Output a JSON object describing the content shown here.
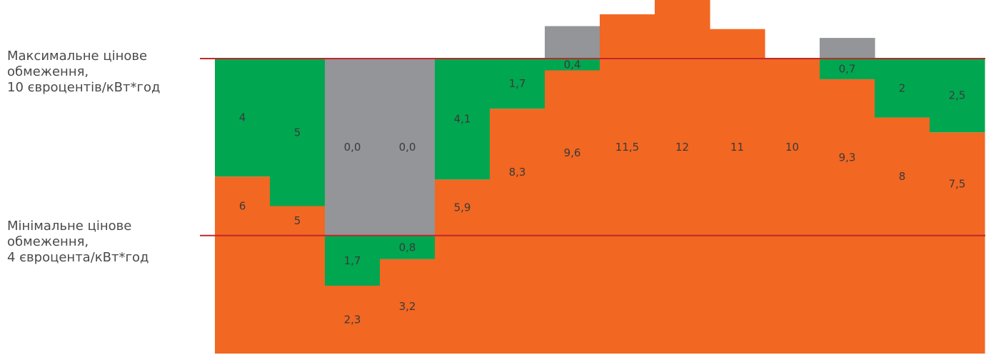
{
  "colors": {
    "orange": "#f26722",
    "green": "#00a650",
    "gray": "#939598",
    "limit_line": "#c1272d",
    "text": "#3a3a3a"
  },
  "labels": {
    "max": [
      "Максимальне цінове",
      "обмеження,",
      "10 євроцентів/кВт*год"
    ],
    "min": [
      "Мінімальне цінове",
      "обмеження,",
      "4 євроцента/кВт*год"
    ]
  },
  "chart_data": {
    "type": "bar",
    "max_cap": 10,
    "min_cap": 4,
    "columns": [
      {
        "price": 6,
        "segments": [
          {
            "color": "orange",
            "from": 0,
            "to": 6,
            "label": "6"
          },
          {
            "color": "green",
            "from": 6,
            "to": 10,
            "label": "4"
          }
        ]
      },
      {
        "price": 5,
        "segments": [
          {
            "color": "orange",
            "from": 0,
            "to": 5,
            "label": "5"
          },
          {
            "color": "green",
            "from": 5,
            "to": 10,
            "label": "5"
          }
        ]
      },
      {
        "price": 2.3,
        "segments": [
          {
            "color": "orange",
            "from": 0,
            "to": 2.3,
            "label": "2,3"
          },
          {
            "color": "green",
            "from": 2.3,
            "to": 4,
            "label": "1,7"
          },
          {
            "color": "gray",
            "from": 4,
            "to": 10,
            "label": "0,0"
          }
        ]
      },
      {
        "price": 3.2,
        "segments": [
          {
            "color": "orange",
            "from": 0,
            "to": 3.2,
            "label": "3,2"
          },
          {
            "color": "green",
            "from": 3.2,
            "to": 4,
            "label": "0,8"
          },
          {
            "color": "gray",
            "from": 4,
            "to": 10,
            "label": "0,0"
          }
        ]
      },
      {
        "price": 5.9,
        "segments": [
          {
            "color": "orange",
            "from": 0,
            "to": 5.9,
            "label": "5,9"
          },
          {
            "color": "green",
            "from": 5.9,
            "to": 10,
            "label": "4,1"
          }
        ]
      },
      {
        "price": 8.3,
        "segments": [
          {
            "color": "orange",
            "from": 0,
            "to": 8.3,
            "label": "8,3"
          },
          {
            "color": "green",
            "from": 8.3,
            "to": 10,
            "label": "1,7"
          }
        ]
      },
      {
        "price": 9.6,
        "segments": [
          {
            "color": "orange",
            "from": 0,
            "to": 9.6,
            "label": "9,6"
          },
          {
            "color": "green",
            "from": 9.6,
            "to": 10,
            "label": "0,4"
          },
          {
            "color": "gray",
            "from": 10,
            "to": 11.1,
            "label": ""
          }
        ]
      },
      {
        "price": 11.5,
        "segments": [
          {
            "color": "orange",
            "from": 0,
            "to": 11.5,
            "label": "11,5"
          }
        ]
      },
      {
        "price": 12,
        "segments": [
          {
            "color": "orange",
            "from": 0,
            "to": 12,
            "label": "12"
          }
        ]
      },
      {
        "price": 11,
        "segments": [
          {
            "color": "orange",
            "from": 0,
            "to": 11,
            "label": "11"
          }
        ]
      },
      {
        "price": 10,
        "segments": [
          {
            "color": "orange",
            "from": 0,
            "to": 10,
            "label": "10"
          }
        ]
      },
      {
        "price": 9.3,
        "segments": [
          {
            "color": "orange",
            "from": 0,
            "to": 9.3,
            "label": "9,3"
          },
          {
            "color": "green",
            "from": 9.3,
            "to": 10,
            "label": "0,7"
          },
          {
            "color": "gray",
            "from": 10,
            "to": 10.7,
            "label": ""
          }
        ]
      },
      {
        "price": 8,
        "segments": [
          {
            "color": "orange",
            "from": 0,
            "to": 8,
            "label": "8"
          },
          {
            "color": "green",
            "from": 8,
            "to": 10,
            "label": "2"
          }
        ]
      },
      {
        "price": 7.5,
        "segments": [
          {
            "color": "orange",
            "from": 0,
            "to": 7.5,
            "label": "7,5"
          },
          {
            "color": "green",
            "from": 7.5,
            "to": 10,
            "label": "2,5"
          }
        ]
      }
    ]
  }
}
